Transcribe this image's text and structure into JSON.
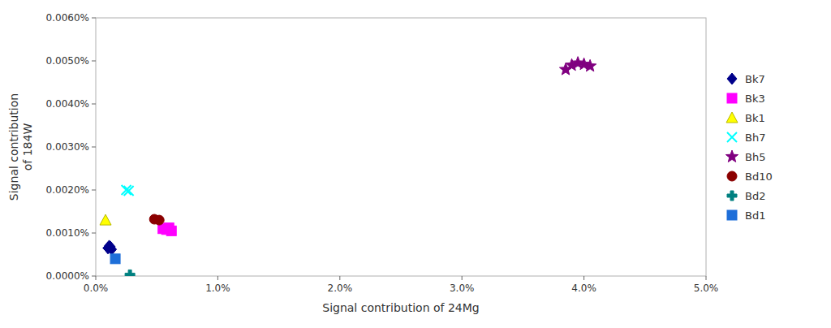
{
  "chart_data": {
    "type": "scatter",
    "x_label": "Signal contribution of 24Mg",
    "y_label": "Signal contribution\nof 184W",
    "xlim": [
      0,
      0.05
    ],
    "ylim": [
      0,
      6e-05
    ],
    "xticks": [
      {
        "value": 0.0,
        "label": "0.0%"
      },
      {
        "value": 0.01,
        "label": "1.0%"
      },
      {
        "value": 0.02,
        "label": "2.0%"
      },
      {
        "value": 0.03,
        "label": "3.0%"
      },
      {
        "value": 0.04,
        "label": "4.0%"
      },
      {
        "value": 0.05,
        "label": "5.0%"
      }
    ],
    "yticks": [
      {
        "value": 0.0,
        "label": "0.0000%"
      },
      {
        "value": 1e-05,
        "label": "0.0010%"
      },
      {
        "value": 2e-05,
        "label": "0.0020%"
      },
      {
        "value": 3e-05,
        "label": "0.0030%"
      },
      {
        "value": 4e-05,
        "label": "0.0040%"
      },
      {
        "value": 5e-05,
        "label": "0.0050%"
      },
      {
        "value": 6e-05,
        "label": "0.0060%"
      }
    ],
    "grid": false,
    "legend": "right",
    "series": [
      {
        "name": "Bk7",
        "marker": "diamond",
        "color": "#00008B",
        "x": [
          0.001,
          0.0012,
          0.0011,
          0.0013,
          0.001
        ],
        "values": [
          6.5e-06,
          6.8e-06,
          7e-06,
          6.2e-06,
          6.5e-06
        ]
      },
      {
        "name": "Bk3",
        "marker": "square",
        "color": "#FF00FF",
        "x": [
          0.0055,
          0.0058,
          0.006,
          0.0062
        ],
        "values": [
          1.1e-05,
          1.08e-05,
          1.12e-05,
          1.05e-05
        ]
      },
      {
        "name": "Bk1",
        "marker": "triangle",
        "color": "#FFFF00",
        "x": [
          0.0008
        ],
        "values": [
          1.3e-05
        ]
      },
      {
        "name": "Bh7",
        "marker": "x",
        "color": "#00FFFF",
        "x": [
          0.0025,
          0.0027
        ],
        "values": [
          2e-05,
          1.98e-05
        ]
      },
      {
        "name": "Bh5",
        "marker": "star",
        "color": "#800080",
        "x": [
          0.0385,
          0.039,
          0.0395,
          0.04,
          0.0405
        ],
        "values": [
          4.8e-05,
          4.9e-05,
          4.95e-05,
          4.92e-05,
          4.88e-05
        ]
      },
      {
        "name": "Bd10",
        "marker": "circle",
        "color": "#8B0000",
        "x": [
          0.0048,
          0.0052
        ],
        "values": [
          1.32e-05,
          1.3e-05
        ]
      },
      {
        "name": "Bd2",
        "marker": "plus",
        "color": "#008080",
        "x": [
          0.0028
        ],
        "values": [
          3e-07
        ]
      },
      {
        "name": "Bd1",
        "marker": "square",
        "color": "#1E6FD9",
        "x": [
          0.0016
        ],
        "values": [
          4e-06
        ]
      }
    ]
  }
}
